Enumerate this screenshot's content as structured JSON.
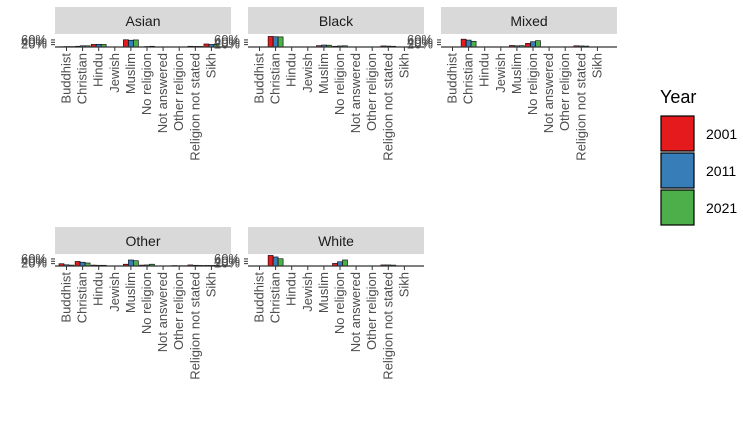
{
  "chart_data": {
    "type": "bar",
    "legend": {
      "title": "Year",
      "placement": "right"
    },
    "colors": {
      "2001": "#E41A1C",
      "2011": "#377EB8",
      "2021": "#4DAF4A",
      "strip": "#D9D9D9"
    },
    "y_ticks": [
      "20%",
      "40%",
      "60%"
    ],
    "ylim": [
      0,
      0.7
    ],
    "categories": [
      "Buddhist",
      "Christian",
      "Hindu",
      "Jewish",
      "Muslim",
      "No religion",
      "Not answered",
      "Other religion",
      "Religion not stated",
      "Sikh"
    ],
    "series": [
      {
        "name": "2001"
      },
      {
        "name": "2011"
      },
      {
        "name": "2021"
      }
    ],
    "panels": [
      {
        "title": "Asian",
        "values": {
          "2001": [
            0.02,
            0.05,
            0.17,
            0.0,
            0.48,
            0.01,
            0.0,
            0.01,
            0.05,
            0.2
          ],
          "2011": [
            0.03,
            0.08,
            0.18,
            0.0,
            0.45,
            0.03,
            0.0,
            0.01,
            0.04,
            0.17
          ],
          "2021": [
            0.03,
            0.08,
            0.17,
            0.0,
            0.47,
            0.05,
            0.0,
            0.01,
            0.04,
            0.15
          ]
        }
      },
      {
        "title": "Black",
        "values": {
          "2001": [
            0.0,
            0.7,
            0.0,
            0.0,
            0.09,
            0.05,
            0.0,
            0.01,
            0.07,
            0.0
          ],
          "2011": [
            0.0,
            0.68,
            0.0,
            0.0,
            0.13,
            0.07,
            0.0,
            0.01,
            0.06,
            0.0
          ],
          "2021": [
            0.0,
            0.67,
            0.0,
            0.0,
            0.12,
            0.08,
            0.0,
            0.01,
            0.05,
            0.0
          ]
        }
      },
      {
        "title": "Mixed",
        "values": {
          "2001": [
            0.01,
            0.52,
            0.01,
            0.01,
            0.1,
            0.24,
            0.0,
            0.01,
            0.08,
            0.01
          ],
          "2011": [
            0.01,
            0.46,
            0.01,
            0.0,
            0.08,
            0.35,
            0.0,
            0.01,
            0.07,
            0.01
          ],
          "2021": [
            0.01,
            0.38,
            0.01,
            0.0,
            0.09,
            0.42,
            0.0,
            0.01,
            0.06,
            0.01
          ]
        }
      },
      {
        "title": "Other",
        "values": {
          "2001": [
            0.15,
            0.3,
            0.06,
            0.01,
            0.12,
            0.06,
            0.0,
            0.03,
            0.07,
            0.04
          ],
          "2011": [
            0.08,
            0.25,
            0.05,
            0.0,
            0.4,
            0.07,
            0.0,
            0.02,
            0.05,
            0.04
          ],
          "2021": [
            0.06,
            0.2,
            0.05,
            0.0,
            0.35,
            0.12,
            0.0,
            0.02,
            0.04,
            0.05
          ]
        }
      },
      {
        "title": "White",
        "values": {
          "2001": [
            0.0,
            0.7,
            0.0,
            0.01,
            0.01,
            0.17,
            0.0,
            0.01,
            0.07,
            0.0
          ],
          "2011": [
            0.0,
            0.6,
            0.0,
            0.01,
            0.01,
            0.28,
            0.0,
            0.01,
            0.07,
            0.0
          ],
          "2021": [
            0.0,
            0.48,
            0.0,
            0.01,
            0.01,
            0.4,
            0.0,
            0.01,
            0.06,
            0.0
          ]
        }
      }
    ]
  }
}
